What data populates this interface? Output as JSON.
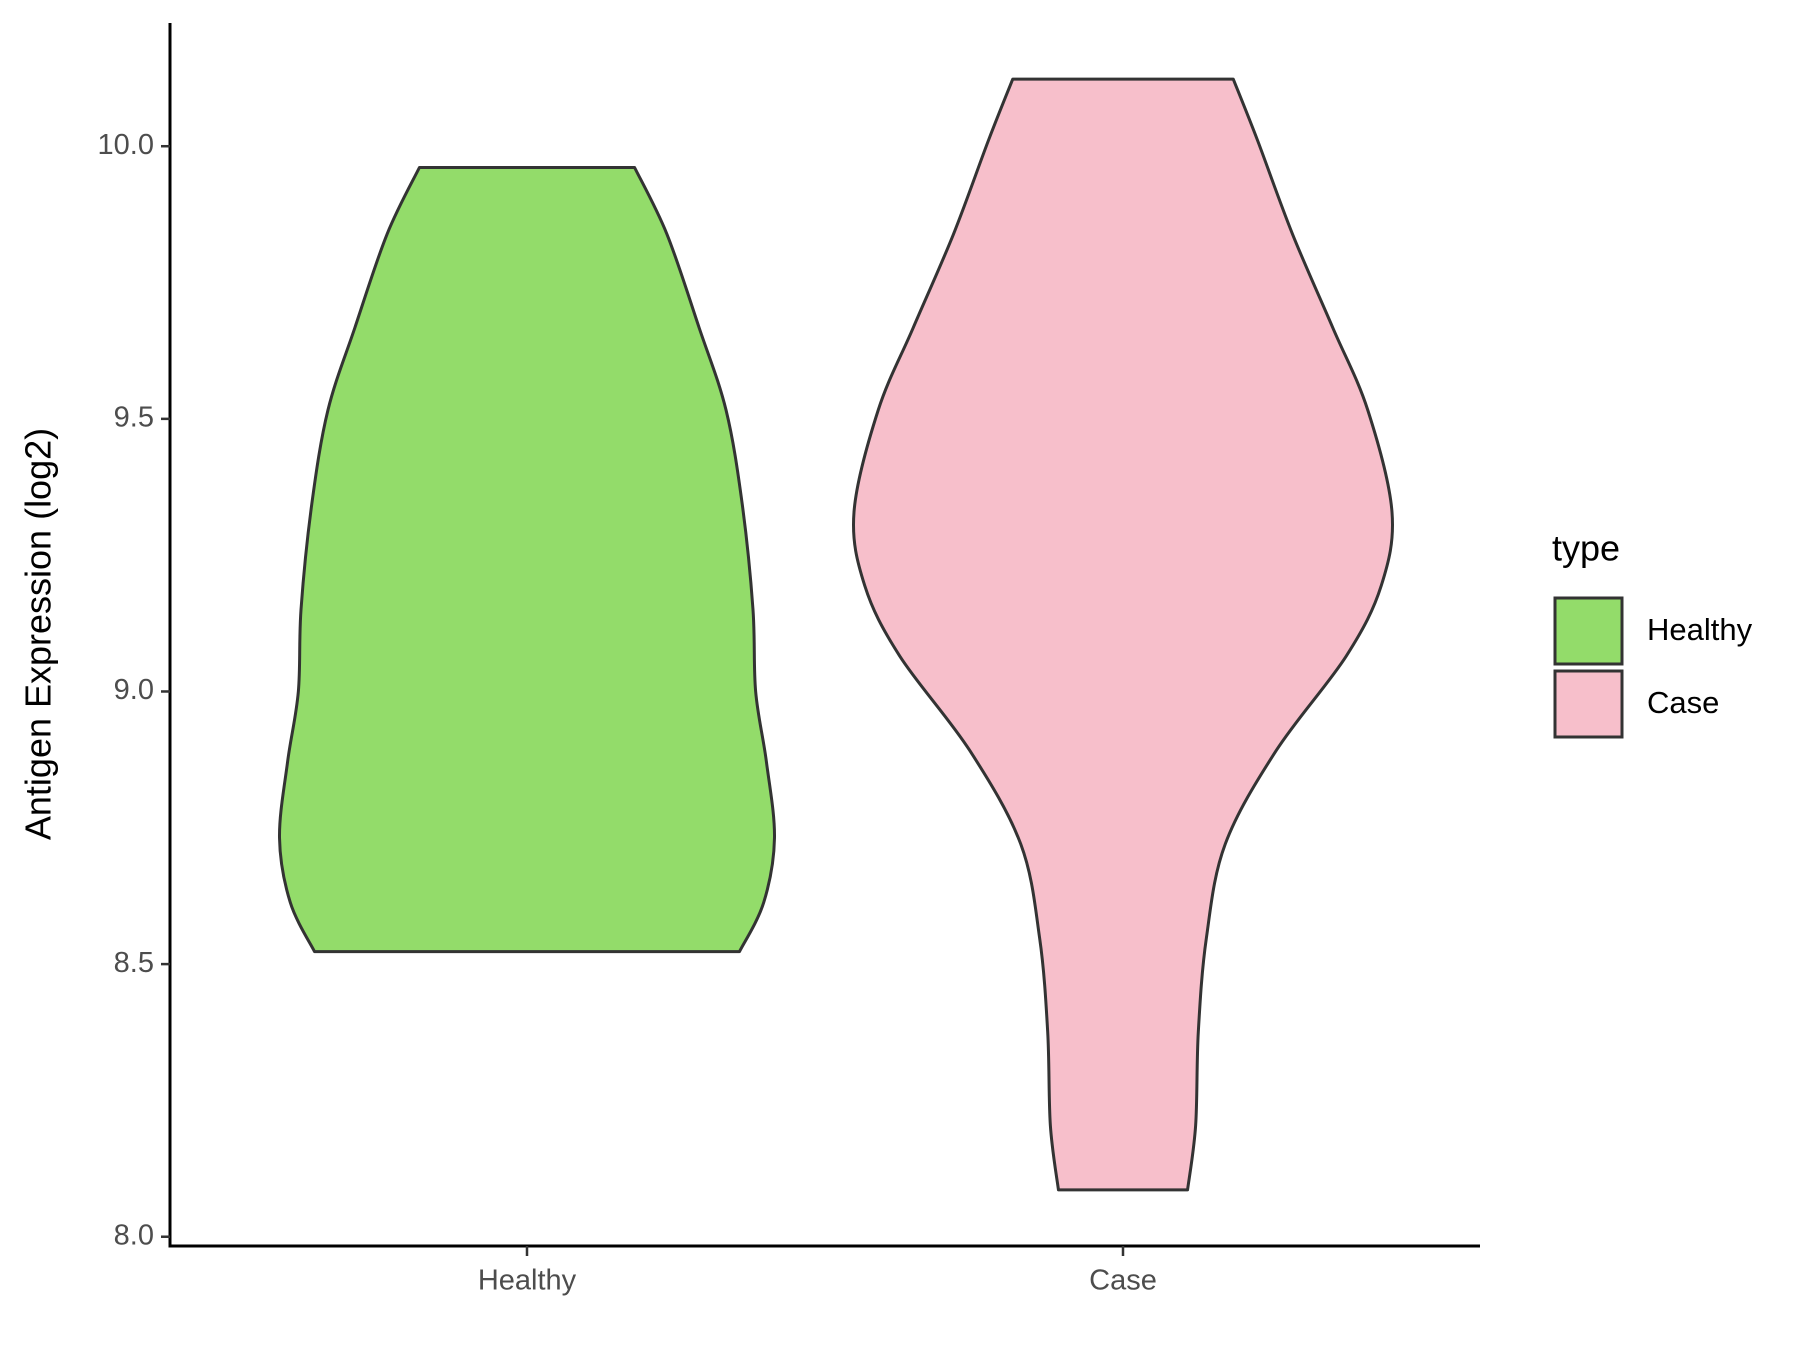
{
  "chart_data": {
    "type": "violin",
    "ylabel": "Antigen Expression (log2)",
    "legend_title": "type",
    "legend": "right",
    "categories": [
      "Healthy",
      "Case"
    ],
    "series": [
      {
        "name": "Healthy",
        "color": "#93dc6a",
        "values": [
          9.961,
          9.839,
          9.667,
          9.516,
          9.344,
          9.151,
          9.0,
          8.871,
          8.731,
          8.613,
          8.523
        ],
        "widths": [
          0.4,
          0.52,
          0.64,
          0.74,
          0.8,
          0.84,
          0.85,
          0.89,
          0.92,
          0.88,
          0.79
        ]
      },
      {
        "name": "Case",
        "color": "#f7bfcb",
        "values": [
          10.123,
          10.011,
          9.839,
          9.667,
          9.516,
          9.329,
          9.194,
          9.065,
          8.892,
          8.72,
          8.548,
          8.376,
          8.204,
          8.086
        ],
        "widths": [
          0.41,
          0.5,
          0.63,
          0.78,
          0.91,
          1.0,
          0.96,
          0.83,
          0.57,
          0.38,
          0.31,
          0.28,
          0.27,
          0.24
        ]
      }
    ],
    "ylim": [
      7.983,
      10.226
    ],
    "yticks": [
      {
        "value": 8.0,
        "label": "8.0"
      },
      8.5,
      {
        "value": 9.0,
        "label": "9.0"
      },
      9.5,
      {
        "value": 10.0,
        "label": "10.0"
      }
    ]
  }
}
